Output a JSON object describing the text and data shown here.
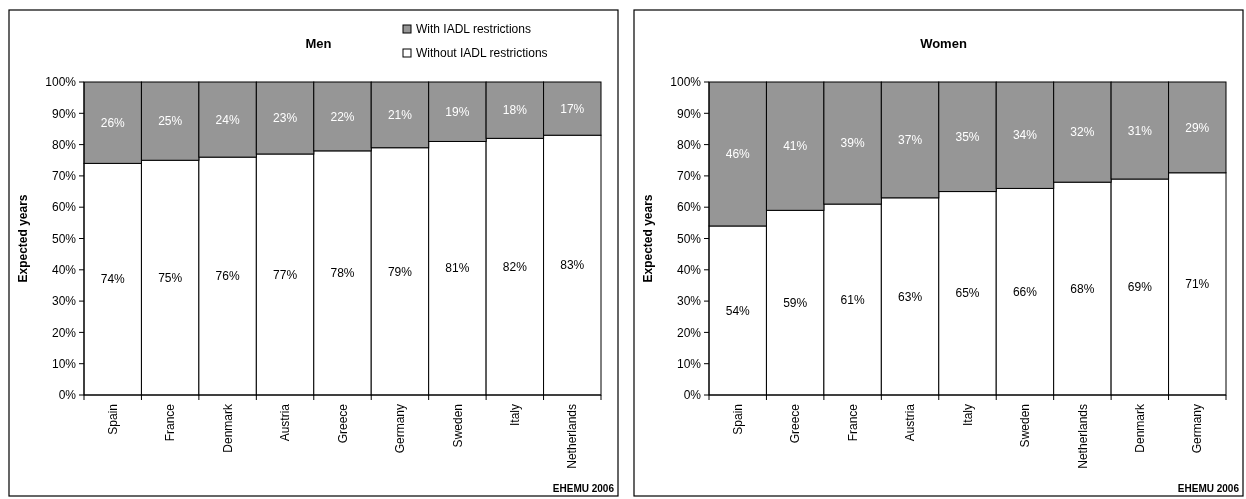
{
  "chart_data": [
    {
      "type": "bar",
      "stacked": true,
      "title": "Men",
      "ylabel": "Expected years",
      "categories": [
        "Spain",
        "France",
        "Denmark",
        "Austria",
        "Greece",
        "Germany",
        "Sweden",
        "Italy",
        "Netherlands"
      ],
      "series": [
        {
          "name": "Without IADL restrictions",
          "color": "#ffffff",
          "values": [
            74,
            75,
            76,
            77,
            78,
            79,
            81,
            82,
            83
          ],
          "value_labels": [
            "74%",
            "75%",
            "76%",
            "77%",
            "78%",
            "79%",
            "81%",
            "82%",
            "83%"
          ]
        },
        {
          "name": "With IADL restrictions",
          "color": "#969696",
          "values": [
            26,
            25,
            24,
            23,
            22,
            21,
            19,
            18,
            17
          ],
          "value_labels": [
            "26%",
            "25%",
            "24%",
            "23%",
            "22%",
            "21%",
            "19%",
            "18%",
            "17%"
          ]
        }
      ],
      "ylim": [
        0,
        100
      ],
      "yticks": [
        {
          "value": 0,
          "label": "0%"
        },
        {
          "value": 10,
          "label": "10%"
        },
        {
          "value": 20,
          "label": "20%"
        },
        {
          "value": 30,
          "label": "30%"
        },
        {
          "value": 40,
          "label": "40%"
        },
        {
          "value": 50,
          "label": "50%"
        },
        {
          "value": 60,
          "label": "60%"
        },
        {
          "value": 70,
          "label": "70%"
        },
        {
          "value": 80,
          "label": "80%"
        },
        {
          "value": 90,
          "label": "90%"
        },
        {
          "value": 100,
          "label": "100%"
        }
      ],
      "legend": "top right",
      "annotations": [
        "EHEMU 2006"
      ]
    },
    {
      "type": "bar",
      "stacked": true,
      "title": "Women",
      "ylabel": "Expected years",
      "categories": [
        "Spain",
        "Greece",
        "France",
        "Austria",
        "Italy",
        "Sweden",
        "Netherlands",
        "Denmark",
        "Germany"
      ],
      "series": [
        {
          "color": "#ffffff",
          "values": [
            54,
            59,
            61,
            63,
            65,
            66,
            68,
            69,
            71
          ],
          "value_labels": [
            "54%",
            "59%",
            "61%",
            "63%",
            "65%",
            "66%",
            "68%",
            "69%",
            "71%"
          ]
        },
        {
          "color": "#969696",
          "values": [
            46,
            41,
            39,
            37,
            35,
            34,
            32,
            31,
            29
          ],
          "value_labels": [
            "46%",
            "41%",
            "39%",
            "37%",
            "35%",
            "34%",
            "32%",
            "31%",
            "29%"
          ]
        }
      ],
      "ylim": [
        0,
        100
      ],
      "yticks": [
        {
          "value": 0,
          "label": "0%"
        },
        {
          "value": 10,
          "label": "10%"
        },
        {
          "value": 20,
          "label": "20%"
        },
        {
          "value": 30,
          "label": "30%"
        },
        {
          "value": 40,
          "label": "40%"
        },
        {
          "value": 50,
          "label": "50%"
        },
        {
          "value": 60,
          "label": "60%"
        },
        {
          "value": 70,
          "label": "70%"
        },
        {
          "value": 80,
          "label": "80%"
        },
        {
          "value": 90,
          "label": "90%"
        },
        {
          "value": 100,
          "label": "100%"
        }
      ],
      "annotations": [
        "EHEMU 2006"
      ]
    }
  ]
}
